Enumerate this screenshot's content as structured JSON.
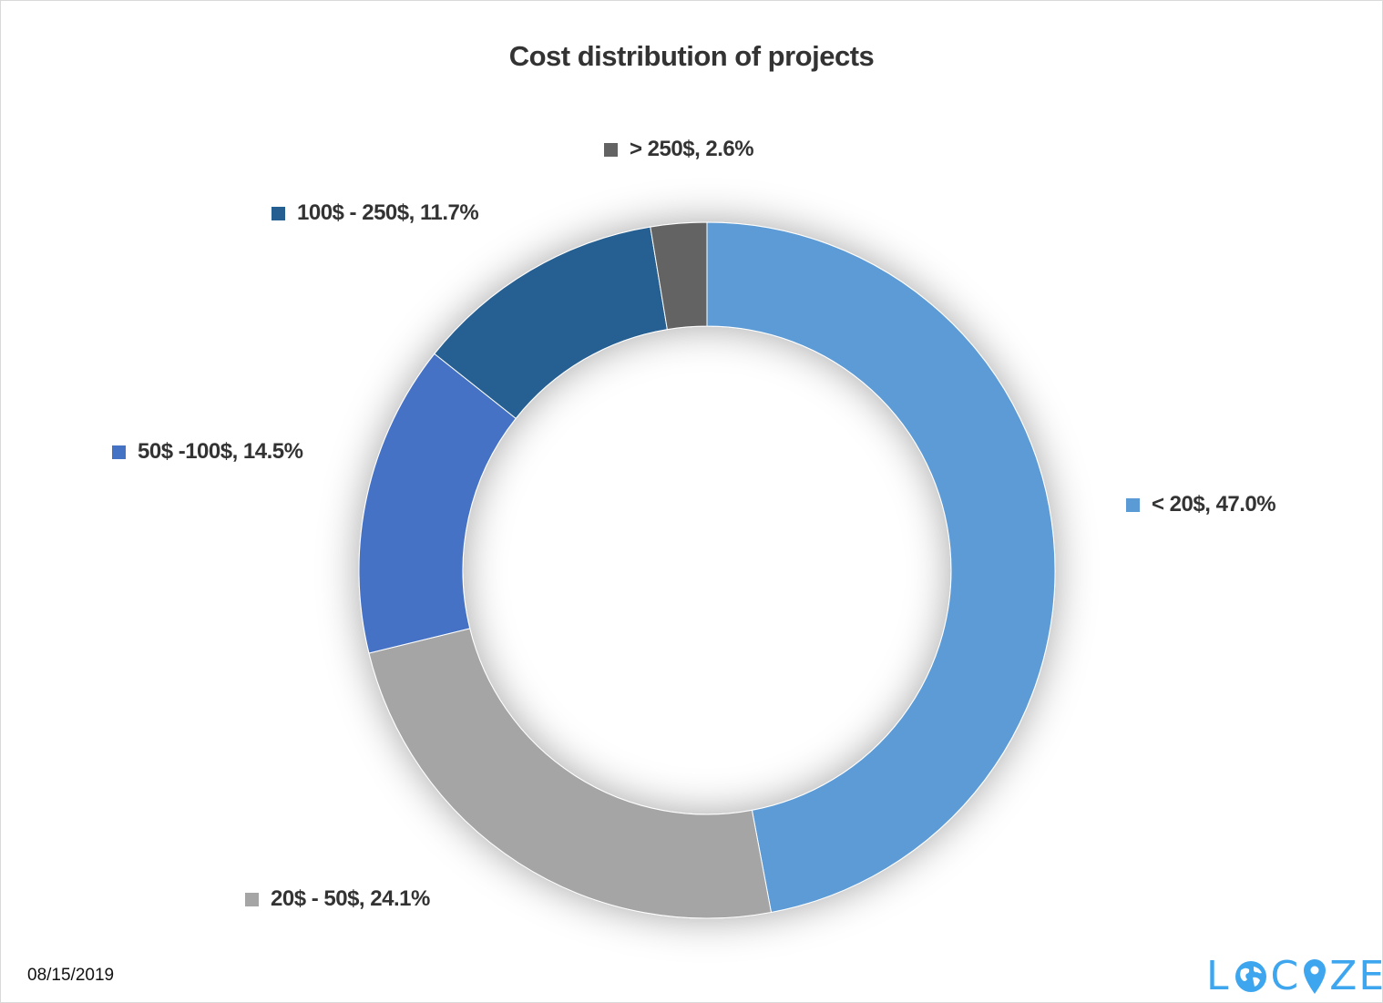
{
  "chart_data": {
    "type": "pie",
    "variant": "donut",
    "title": "Cost distribution of projects",
    "categories": [
      "< 20$",
      "20$ - 50$",
      "50$ -100$",
      "100$ - 250$",
      "> 250$"
    ],
    "values": [
      47.0,
      24.1,
      14.5,
      11.7,
      2.6
    ],
    "data_labels": [
      "< 20$, 47.0%",
      "20$ - 50$, 24.1%",
      "50$ -100$, 14.5%",
      "100$ - 250$, 11.7%",
      "> 250$, 2.6%"
    ],
    "colors": [
      "#5B9BD5",
      "#A5A5A5",
      "#4472C4",
      "#255E91",
      "#636363"
    ],
    "legend": "none"
  },
  "footer": {
    "date": "08/15/2019",
    "logo_text": "LOCIZE",
    "logo_color": "#3EA6EE"
  }
}
